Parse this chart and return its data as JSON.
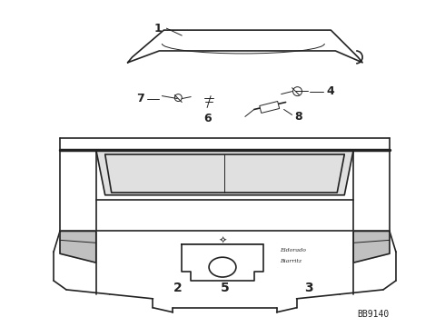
{
  "bg_color": "#ffffff",
  "line_color": "#222222",
  "text_color": "#222222",
  "diagram_code": "BB9140",
  "figsize": [
    4.9,
    3.6
  ],
  "dpi": 100
}
